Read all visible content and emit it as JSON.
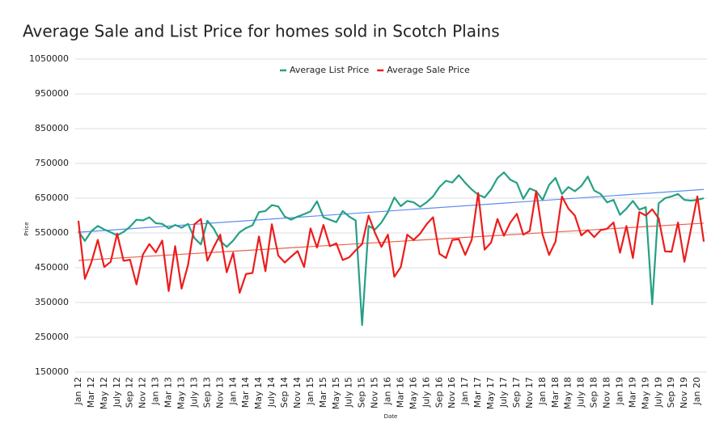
{
  "chart_data": {
    "type": "line",
    "title": "Average Sale and List Price for homes sold in Scotch Plains",
    "x_label": "Date",
    "y_label": "Price",
    "categories": [
      "Jan 12",
      null,
      "Mar 12",
      null,
      "May 12",
      null,
      "July 12",
      null,
      "Sep 12",
      null,
      "Nov 12",
      null,
      "Jan 13",
      null,
      "Mar 13",
      null,
      "May 13",
      null,
      "July 13",
      null,
      "Sep 13",
      null,
      "Nov 13",
      null,
      "Jan 14",
      null,
      "Mar 14",
      null,
      "May 14",
      null,
      "July 14",
      null,
      "Sep 14",
      null,
      "Nov 14",
      null,
      "Jan 15",
      null,
      "Mar 15",
      null,
      "May 15",
      null,
      "July 15",
      null,
      "Sep 15",
      null,
      "Nov 15",
      null,
      "Jan 16",
      null,
      "Mar 16",
      null,
      "May 16",
      null,
      "July 16",
      null,
      "Sep 16",
      null,
      "Nov 16",
      null,
      "Jan 17",
      null,
      "Mar 17",
      null,
      "May 17",
      null,
      "July 17",
      null,
      "Sep 17",
      null,
      "Nov 17",
      null,
      "Jan 18",
      null,
      "Mar 18",
      null,
      "May 18",
      null,
      "July 18",
      null,
      "Sep 18",
      null,
      "Nov 18",
      null,
      "Jan 19",
      null,
      "Mar 19",
      null,
      "May 19",
      null,
      "July 19",
      null,
      "Sep 19",
      null,
      "Nov 19",
      null,
      "Jan 20",
      null
    ],
    "series": [
      {
        "name": "Average List Price",
        "color": "#26a085",
        "values": [
          555000,
          527000,
          555000,
          570000,
          560000,
          552000,
          543000,
          553000,
          568000,
          588000,
          586000,
          595000,
          578000,
          576000,
          563000,
          573000,
          565000,
          576000,
          535000,
          517000,
          585000,
          562000,
          527000,
          510000,
          528000,
          552000,
          564000,
          572000,
          610000,
          613000,
          630000,
          626000,
          597000,
          588000,
          597000,
          604000,
          612000,
          641000,
          595000,
          588000,
          581000,
          613000,
          597000,
          586000,
          285000,
          570000,
          560000,
          580000,
          610000,
          652000,
          627000,
          642000,
          638000,
          625000,
          638000,
          655000,
          682000,
          700000,
          695000,
          716000,
          694000,
          675000,
          660000,
          652000,
          675000,
          708000,
          724000,
          703000,
          694000,
          648000,
          678000,
          670000,
          645000,
          688000,
          708000,
          662000,
          682000,
          670000,
          685000,
          712000,
          672000,
          662000,
          638000,
          645000,
          602000,
          620000,
          642000,
          617000,
          624000,
          345000,
          635000,
          650000,
          655000,
          662000,
          645000,
          643000,
          645000,
          650000
        ]
      },
      {
        "name": "Average Sale Price",
        "color": "#ee1c1c",
        "values": [
          585000,
          418000,
          465000,
          530000,
          452000,
          467000,
          548000,
          470000,
          473000,
          402000,
          488000,
          518000,
          494000,
          528000,
          383000,
          512000,
          390000,
          458000,
          575000,
          590000,
          470000,
          510000,
          545000,
          437000,
          493000,
          378000,
          432000,
          435000,
          540000,
          440000,
          575000,
          485000,
          465000,
          482000,
          498000,
          452000,
          563000,
          508000,
          573000,
          512000,
          520000,
          472000,
          480000,
          500000,
          518000,
          600000,
          550000,
          510000,
          545000,
          424000,
          452000,
          545000,
          530000,
          548000,
          575000,
          595000,
          490000,
          478000,
          530000,
          532000,
          487000,
          530000,
          665000,
          502000,
          522000,
          590000,
          542000,
          580000,
          605000,
          545000,
          556000,
          670000,
          545000,
          487000,
          525000,
          655000,
          620000,
          600000,
          543000,
          558000,
          538000,
          558000,
          562000,
          580000,
          493000,
          570000,
          478000,
          610000,
          600000,
          618000,
          592000,
          497000,
          496000,
          580000,
          467000,
          560000,
          655000,
          525000
        ]
      }
    ],
    "trend_lines": [
      {
        "color": "#5b8def",
        "values": [
          552000,
          675000
        ]
      },
      {
        "color": "#e8604c",
        "values": [
          471000,
          578000
        ]
      }
    ],
    "ylim": [
      150000,
      1050000
    ],
    "yticks": [
      150000,
      250000,
      350000,
      450000,
      550000,
      650000,
      750000,
      850000,
      950000,
      1050000
    ],
    "grid": true
  }
}
